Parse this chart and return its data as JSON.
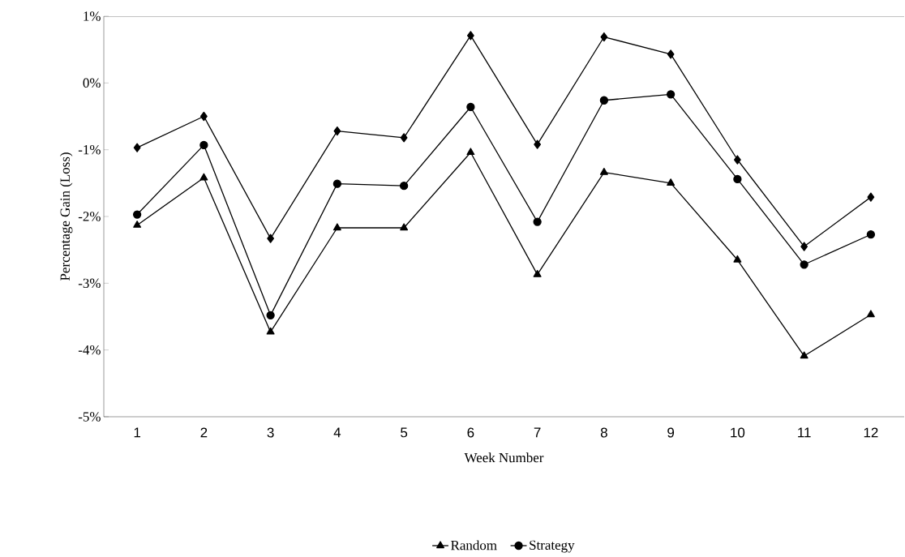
{
  "chart_data": {
    "type": "line",
    "xlabel": "Week Number",
    "ylabel": "Percentage Gain (Loss)",
    "categories": [
      "1",
      "2",
      "3",
      "4",
      "5",
      "6",
      "7",
      "8",
      "9",
      "10",
      "11",
      "12"
    ],
    "series": [
      {
        "name": "Random",
        "color": "#000000",
        "marker": "triangle",
        "values": [
          -2.13,
          -1.42,
          -3.73,
          -2.17,
          -2.17,
          -1.04,
          -2.87,
          -1.34,
          -1.5,
          -2.65,
          -4.09,
          -3.47
        ]
      },
      {
        "name": "Strategy",
        "color": "#000000",
        "marker": "circle",
        "values": [
          -1.97,
          -0.93,
          -3.48,
          -1.51,
          -1.54,
          -0.36,
          -2.08,
          -0.26,
          -0.17,
          -1.44,
          -2.72,
          -2.27
        ]
      },
      {
        "color": "#000000",
        "marker": "diamond",
        "values": [
          -0.97,
          -0.5,
          -2.33,
          -0.72,
          -0.82,
          0.71,
          -0.92,
          0.69,
          0.43,
          -1.15,
          -2.45,
          -1.71
        ]
      }
    ],
    "ylim": [
      -5,
      1
    ],
    "yticks": [
      {
        "value": -5,
        "label": "-5%"
      },
      {
        "value": -4,
        "label": "-4%"
      },
      {
        "value": -3,
        "label": "-3%"
      },
      {
        "value": -2,
        "label": "-2%"
      },
      {
        "value": -1,
        "label": "-1%"
      },
      {
        "value": 0,
        "label": "0%"
      },
      {
        "value": 1,
        "label": "1%"
      }
    ],
    "legend": "bottom",
    "grid": false,
    "line_style": "solid"
  }
}
